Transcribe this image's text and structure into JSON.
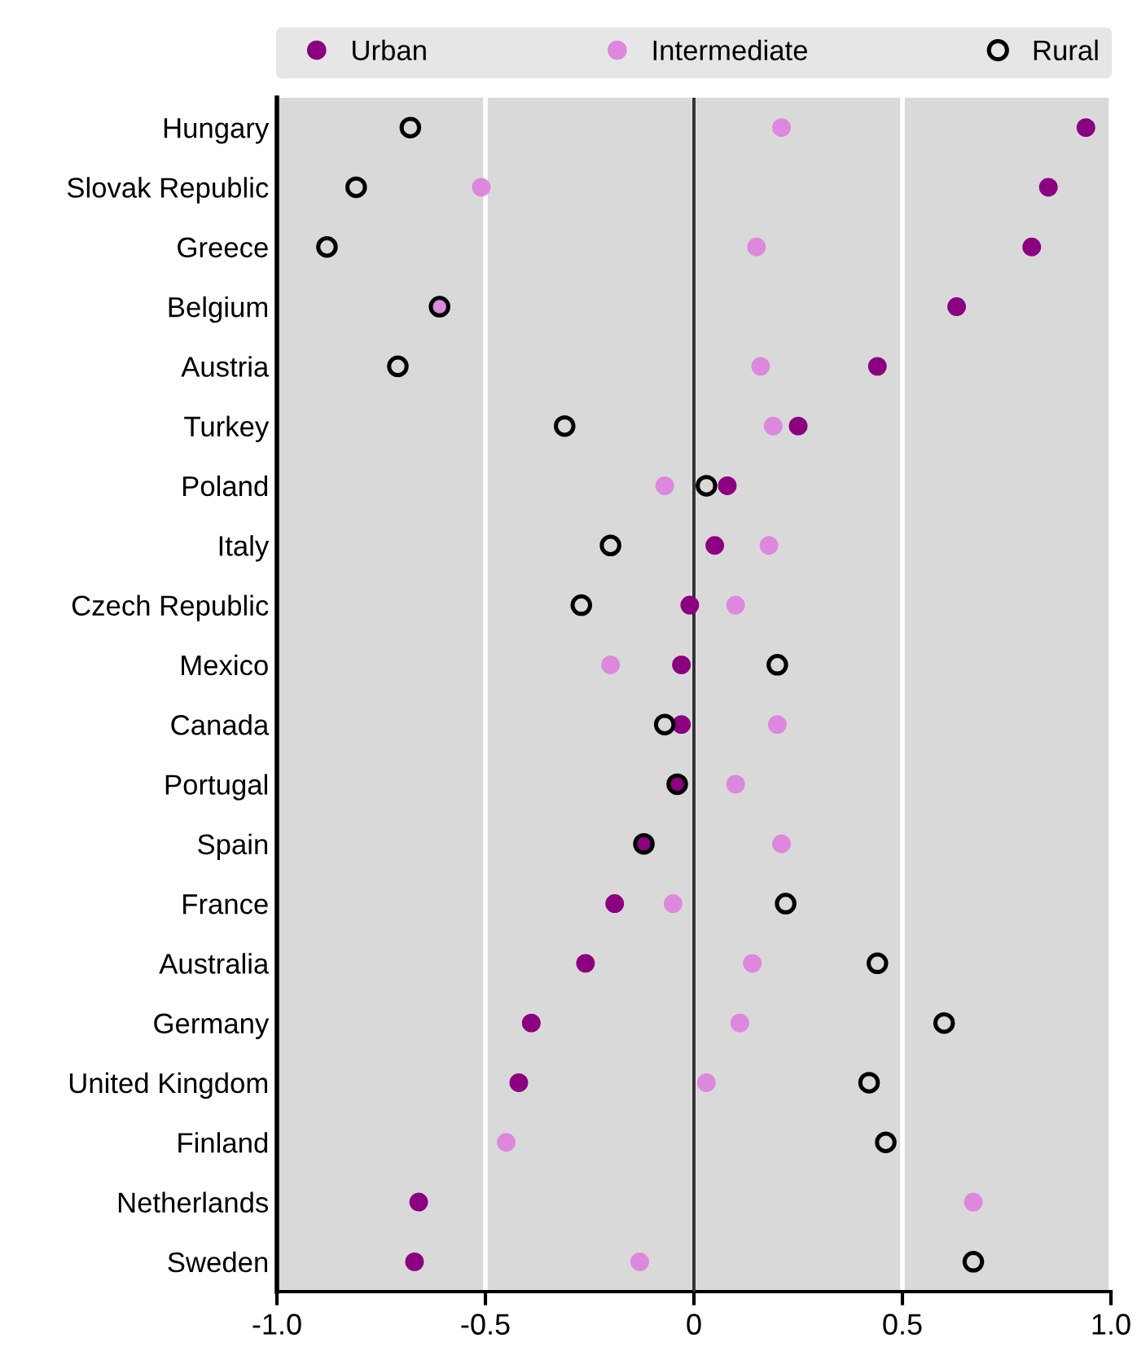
{
  "chart_data": {
    "type": "scatter",
    "orientation": "horizontal",
    "categories": [
      "Hungary",
      "Slovak Republic",
      "Greece",
      "Belgium",
      "Austria",
      "Turkey",
      "Poland",
      "Italy",
      "Czech Republic",
      "Mexico",
      "Canada",
      "Portugal",
      "Spain",
      "France",
      "Australia",
      "Germany",
      "United Kingdom",
      "Finland",
      "Netherlands",
      "Sweden"
    ],
    "series": [
      {
        "name": "Urban",
        "color": "#8b0080",
        "values": [
          0.94,
          0.85,
          0.81,
          0.63,
          0.44,
          0.25,
          0.08,
          0.05,
          -0.01,
          -0.03,
          -0.03,
          -0.04,
          -0.12,
          -0.19,
          -0.26,
          -0.39,
          -0.42,
          null,
          -0.66,
          -0.67
        ]
      },
      {
        "name": "Intermediate",
        "color": "#dd88dd",
        "values": [
          0.21,
          -0.51,
          0.15,
          -0.61,
          0.16,
          0.19,
          -0.07,
          0.18,
          0.1,
          -0.2,
          0.2,
          0.1,
          0.21,
          -0.05,
          0.14,
          0.11,
          0.03,
          -0.45,
          0.67,
          -0.13
        ]
      },
      {
        "name": "Rural",
        "color": "#000000",
        "values": [
          -0.68,
          -0.81,
          -0.88,
          -0.61,
          -0.71,
          -0.31,
          0.03,
          -0.2,
          -0.27,
          0.2,
          -0.07,
          -0.04,
          -0.12,
          0.22,
          0.44,
          0.6,
          0.42,
          0.46,
          null,
          0.67
        ]
      }
    ],
    "xlim": [
      -1.0,
      1.0
    ],
    "xticks": [
      {
        "value": -1.0,
        "label": "-1.0"
      },
      {
        "value": -0.5,
        "label": "-0.5"
      },
      0,
      {
        "value": 0.5,
        "label": "0.5"
      },
      {
        "value": 1.0,
        "label": "1.0"
      }
    ],
    "ref_lines": [
      {
        "axis": "x",
        "value": 0,
        "color": "#333333"
      }
    ],
    "grid": "x",
    "legend": "top",
    "marker": "circle"
  }
}
